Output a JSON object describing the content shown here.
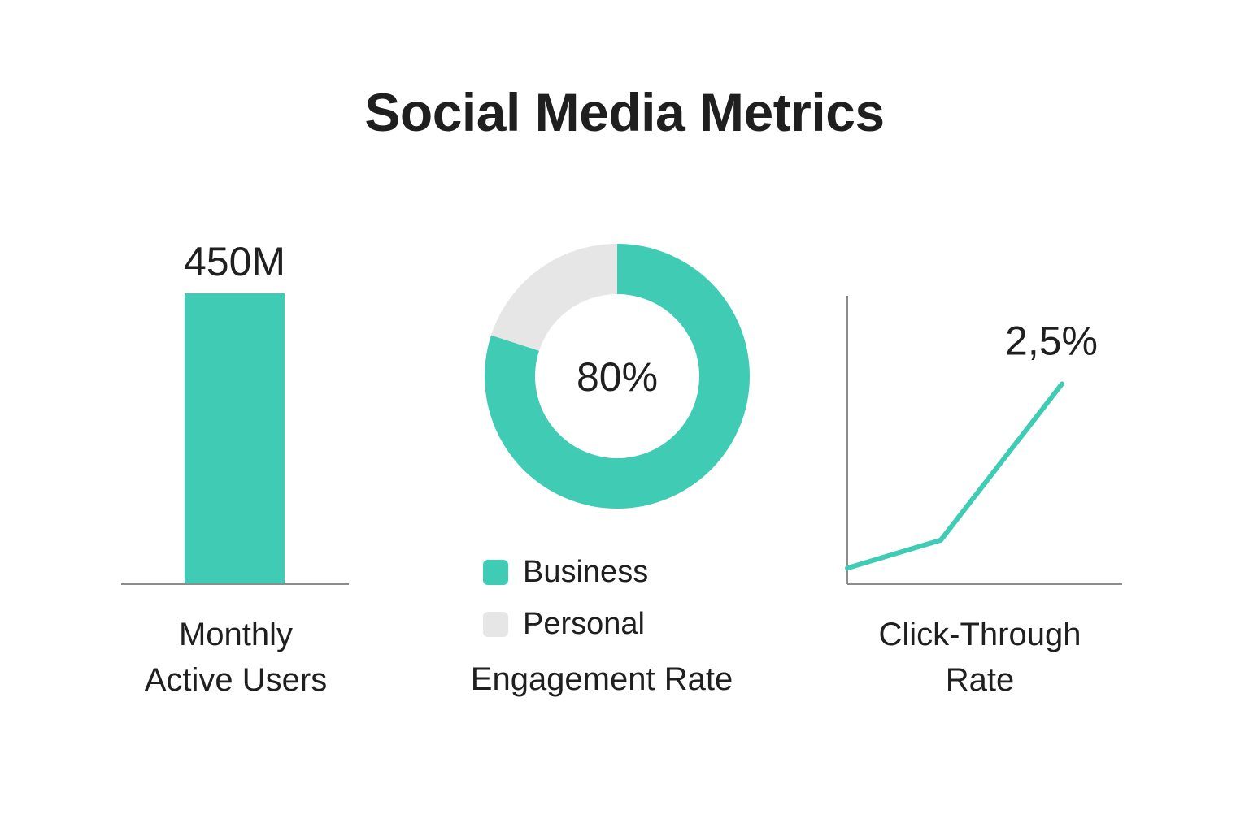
{
  "title": "Social Media Metrics",
  "colors": {
    "accent": "#3fcbb4",
    "muted": "#e6e6e6",
    "axis": "#8c8c8c",
    "text": "#1f1f1f"
  },
  "chart_data": [
    {
      "type": "bar",
      "categories": [
        "Monthly Active Users"
      ],
      "values": [
        450
      ],
      "unit": "M",
      "value_label": "450M",
      "ylim": [
        0,
        450
      ],
      "caption": "Monthly\nActive Users"
    },
    {
      "type": "pie",
      "style": "donut",
      "labels": [
        "Business",
        "Personal"
      ],
      "values": [
        80,
        20
      ],
      "center_label": "80%",
      "caption": "Engagement Rate",
      "legend": [
        "Business",
        "Personal"
      ]
    },
    {
      "type": "line",
      "x": [
        0,
        1,
        2
      ],
      "values": [
        0.2,
        0.55,
        2.5
      ],
      "end_label": "2,5%",
      "ylim": [
        0,
        3.6
      ],
      "caption": "Click-Through\nRate"
    }
  ]
}
